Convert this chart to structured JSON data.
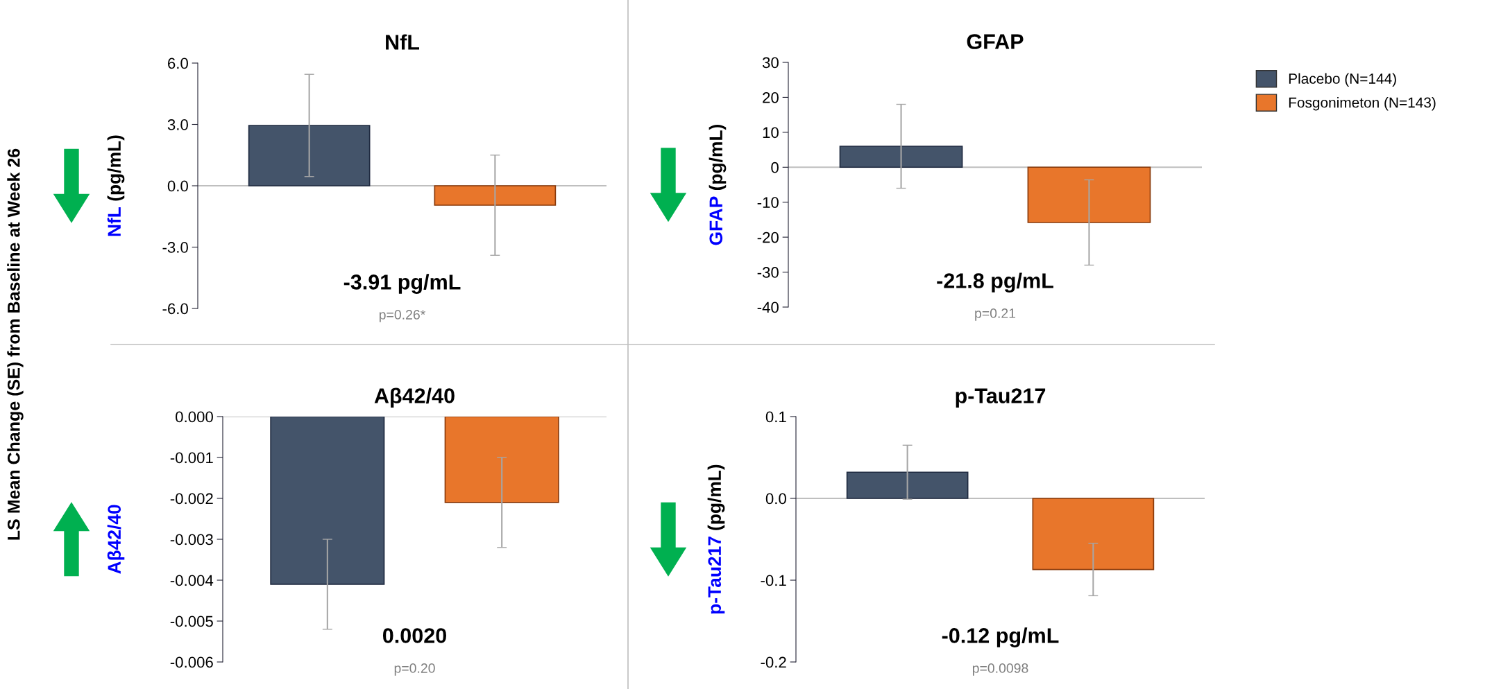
{
  "chart_data": [
    {
      "type": "bar",
      "title": "NfL",
      "ylabel": "NfL (pg/mL)",
      "categories": [
        null,
        null
      ],
      "ylim": [
        -6,
        6
      ],
      "yticks": [
        {
          "value": -6,
          "label": "-6.0"
        },
        {
          "value": -3,
          "label": "-3.0"
        },
        {
          "value": 0,
          "label": "0.0"
        },
        {
          "value": 3,
          "label": "3.0"
        },
        {
          "value": 6,
          "label": "6.0"
        }
      ],
      "grid": false,
      "ref_lines": [
        {
          "axis": "y",
          "value": 0,
          "color": "#bfbfbf"
        }
      ],
      "series": [
        {
          "color": "#44546a",
          "values": [
            2.95,
            null
          ],
          "errors": [
            2.5,
            null
          ]
        },
        {
          "color": "#e8762b",
          "values": [
            null,
            -0.95
          ],
          "errors": [
            null,
            2.45
          ]
        }
      ],
      "annotations": [
        "-3.91 pg/mL",
        "p=0.26*"
      ]
    },
    {
      "type": "bar",
      "title": "GFAP",
      "ylabel": "GFAP (pg/mL)",
      "categories": [
        null,
        null
      ],
      "ylim": [
        -40,
        30
      ],
      "yticks": [
        -40,
        -30,
        -20,
        -10,
        0,
        10,
        20,
        30
      ],
      "grid": false,
      "ref_lines": [
        {
          "axis": "y",
          "value": 0,
          "color": "#bfbfbf"
        }
      ],
      "legend": "right",
      "series": [
        {
          "name": "Placebo (N=144)",
          "color": "#44546a",
          "values": [
            6,
            null
          ],
          "errors": [
            12,
            null
          ]
        },
        {
          "name": "Fosgonimeton (N=143)",
          "color": "#e8762b",
          "values": [
            null,
            -15.8
          ],
          "errors": [
            null,
            12.2
          ]
        }
      ],
      "annotations": [
        "-21.8 pg/mL",
        "p=0.21"
      ]
    },
    {
      "type": "bar",
      "title": "Aβ42/40",
      "ylabel": "Aβ42/40",
      "categories": [
        null,
        null
      ],
      "ylim": [
        -0.006,
        0
      ],
      "yticks": [
        {
          "value": -0.006,
          "label": "-0.006"
        },
        {
          "value": -0.005,
          "label": "-0.005"
        },
        {
          "value": -0.004,
          "label": "-0.004"
        },
        {
          "value": -0.003,
          "label": "-0.003"
        },
        {
          "value": -0.002,
          "label": "-0.002"
        },
        {
          "value": -0.001,
          "label": "-0.001"
        },
        {
          "value": 0,
          "label": "0.000"
        }
      ],
      "grid": false,
      "ref_lines": [
        {
          "axis": "y",
          "value": 0,
          "color": "#bfbfbf"
        }
      ],
      "series": [
        {
          "color": "#44546a",
          "values": [
            -0.0041,
            null
          ],
          "errors": [
            0.0011,
            null
          ]
        },
        {
          "color": "#e8762b",
          "values": [
            null,
            -0.0021
          ],
          "errors": [
            null,
            0.0011
          ]
        }
      ],
      "annotations": [
        "0.0020",
        "p=0.20"
      ]
    },
    {
      "type": "bar",
      "title": "p-Tau217",
      "ylabel": "p-Tau217 (pg/mL)",
      "categories": [
        null,
        null
      ],
      "ylim": [
        -0.2,
        0.1
      ],
      "yticks": [
        -0.2,
        -0.1,
        {
          "value": 0,
          "label": "0.0"
        },
        0.1
      ],
      "grid": false,
      "ref_lines": [
        {
          "axis": "y",
          "value": 0,
          "color": "#bfbfbf"
        }
      ],
      "series": [
        {
          "color": "#44546a",
          "values": [
            0.032,
            null
          ],
          "errors": [
            0.033,
            null
          ]
        },
        {
          "color": "#e8762b",
          "values": [
            null,
            -0.087
          ],
          "errors": [
            null,
            0.032
          ]
        }
      ],
      "annotations": [
        "-0.12 pg/mL",
        "p=0.0098"
      ]
    },
    {
      "type": "other",
      "ylabel": "LS Mean Change (SE) from Baseline at Week 26"
    }
  ]
}
